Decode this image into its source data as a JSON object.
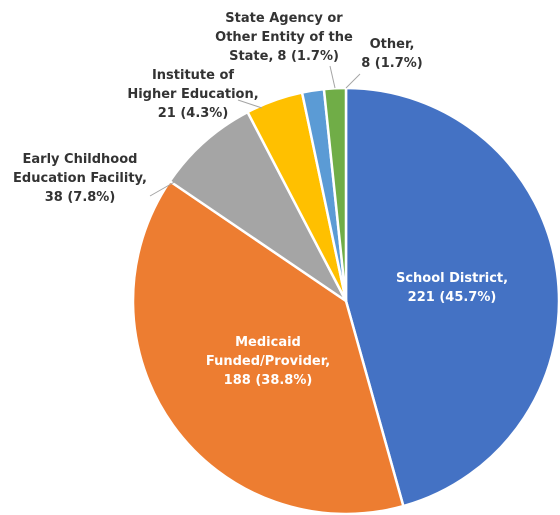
{
  "chart_data": {
    "type": "pie",
    "categories": [
      "School District,",
      "Medicaid Funded/Provider,",
      "Early Childhood Education Facility,",
      "Institute of Higher Education,",
      "State Agency or Other Entity of the State,",
      "Other,"
    ],
    "values": [
      221,
      188,
      38,
      21,
      8,
      8
    ],
    "value_labels": [
      "221 (45.7%)",
      "188 (38.8%)",
      "38 (7.8%)",
      "21 (4.3%)",
      "8 (1.7%)",
      "8 (1.7%)"
    ],
    "colors": [
      "#4472c4",
      "#ed7d31",
      "#a5a5a5",
      "#ffc000",
      "#5b9bd5",
      "#70ad47"
    ]
  }
}
